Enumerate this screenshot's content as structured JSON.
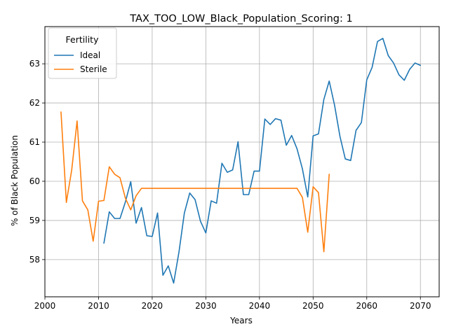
{
  "chart_data": {
    "type": "line",
    "title": "TAX_TOO_LOW_Black_Population_Scoring: 1",
    "xlabel": "Years",
    "ylabel": "% of Black Population",
    "xlim": [
      2000,
      2073.5
    ],
    "ylim": [
      57.05,
      63.95
    ],
    "xticks": [
      2000,
      2010,
      2020,
      2030,
      2040,
      2050,
      2060,
      2070
    ],
    "yticks": [
      58,
      59,
      60,
      61,
      62,
      63
    ],
    "grid": true,
    "legend": {
      "title": "Fertility",
      "placement": "top-left"
    },
    "series": [
      {
        "name": "Ideal",
        "color": "#1f77b4",
        "x": [
          2011,
          2012,
          2013,
          2014,
          2015,
          2016,
          2017,
          2018,
          2019,
          2020,
          2021,
          2022,
          2023,
          2024,
          2025,
          2026,
          2027,
          2028,
          2029,
          2030,
          2031,
          2032,
          2033,
          2034,
          2035,
          2036,
          2037,
          2038,
          2039,
          2040,
          2041,
          2042,
          2043,
          2044,
          2045,
          2046,
          2047,
          2048,
          2049,
          2050,
          2051,
          2052,
          2053,
          2054,
          2055,
          2056,
          2057,
          2058,
          2059,
          2060,
          2061,
          2062,
          2063,
          2064,
          2065,
          2066,
          2067,
          2068,
          2069,
          2070
        ],
        "y": [
          58.42,
          59.22,
          59.05,
          59.05,
          59.47,
          59.99,
          58.93,
          59.33,
          58.61,
          58.59,
          59.19,
          57.6,
          57.84,
          57.4,
          58.2,
          59.19,
          59.7,
          59.53,
          58.98,
          58.68,
          59.5,
          59.44,
          60.46,
          60.23,
          60.29,
          61.01,
          59.66,
          59.66,
          60.26,
          60.26,
          61.59,
          61.45,
          61.6,
          61.56,
          60.92,
          61.17,
          60.83,
          60.32,
          59.6,
          61.16,
          61.21,
          62.09,
          62.56,
          61.94,
          61.15,
          60.57,
          60.53,
          61.3,
          61.5,
          62.59,
          62.91,
          63.57,
          63.65,
          63.21,
          63.02,
          62.72,
          62.58,
          62.86,
          63.02,
          62.96
        ]
      },
      {
        "name": "Sterile",
        "color": "#ff7f0e",
        "x": [
          2003,
          2004,
          2005,
          2006,
          2007,
          2008,
          2009,
          2010,
          2011,
          2012,
          2013,
          2014,
          2015,
          2016,
          2017,
          2018,
          2019,
          2020,
          2021,
          2022,
          2023,
          2024,
          2025,
          2026,
          2027,
          2028,
          2029,
          2030,
          2031,
          2032,
          2033,
          2034,
          2035,
          2036,
          2037,
          2038,
          2039,
          2040,
          2041,
          2042,
          2043,
          2044,
          2045,
          2046,
          2047,
          2048,
          2049,
          2050,
          2051,
          2052,
          2053
        ],
        "y": [
          61.77,
          59.46,
          60.29,
          61.54,
          59.5,
          59.27,
          58.47,
          59.49,
          59.51,
          60.37,
          60.18,
          60.09,
          59.57,
          59.27,
          59.63,
          59.82,
          59.82,
          59.82,
          59.82,
          59.82,
          59.82,
          59.82,
          59.82,
          59.82,
          59.82,
          59.82,
          59.82,
          59.82,
          59.82,
          59.82,
          59.82,
          59.82,
          59.82,
          59.82,
          59.82,
          59.82,
          59.82,
          59.82,
          59.82,
          59.82,
          59.82,
          59.82,
          59.82,
          59.82,
          59.82,
          59.59,
          58.7,
          59.86,
          59.71,
          58.2,
          60.18
        ]
      }
    ]
  }
}
